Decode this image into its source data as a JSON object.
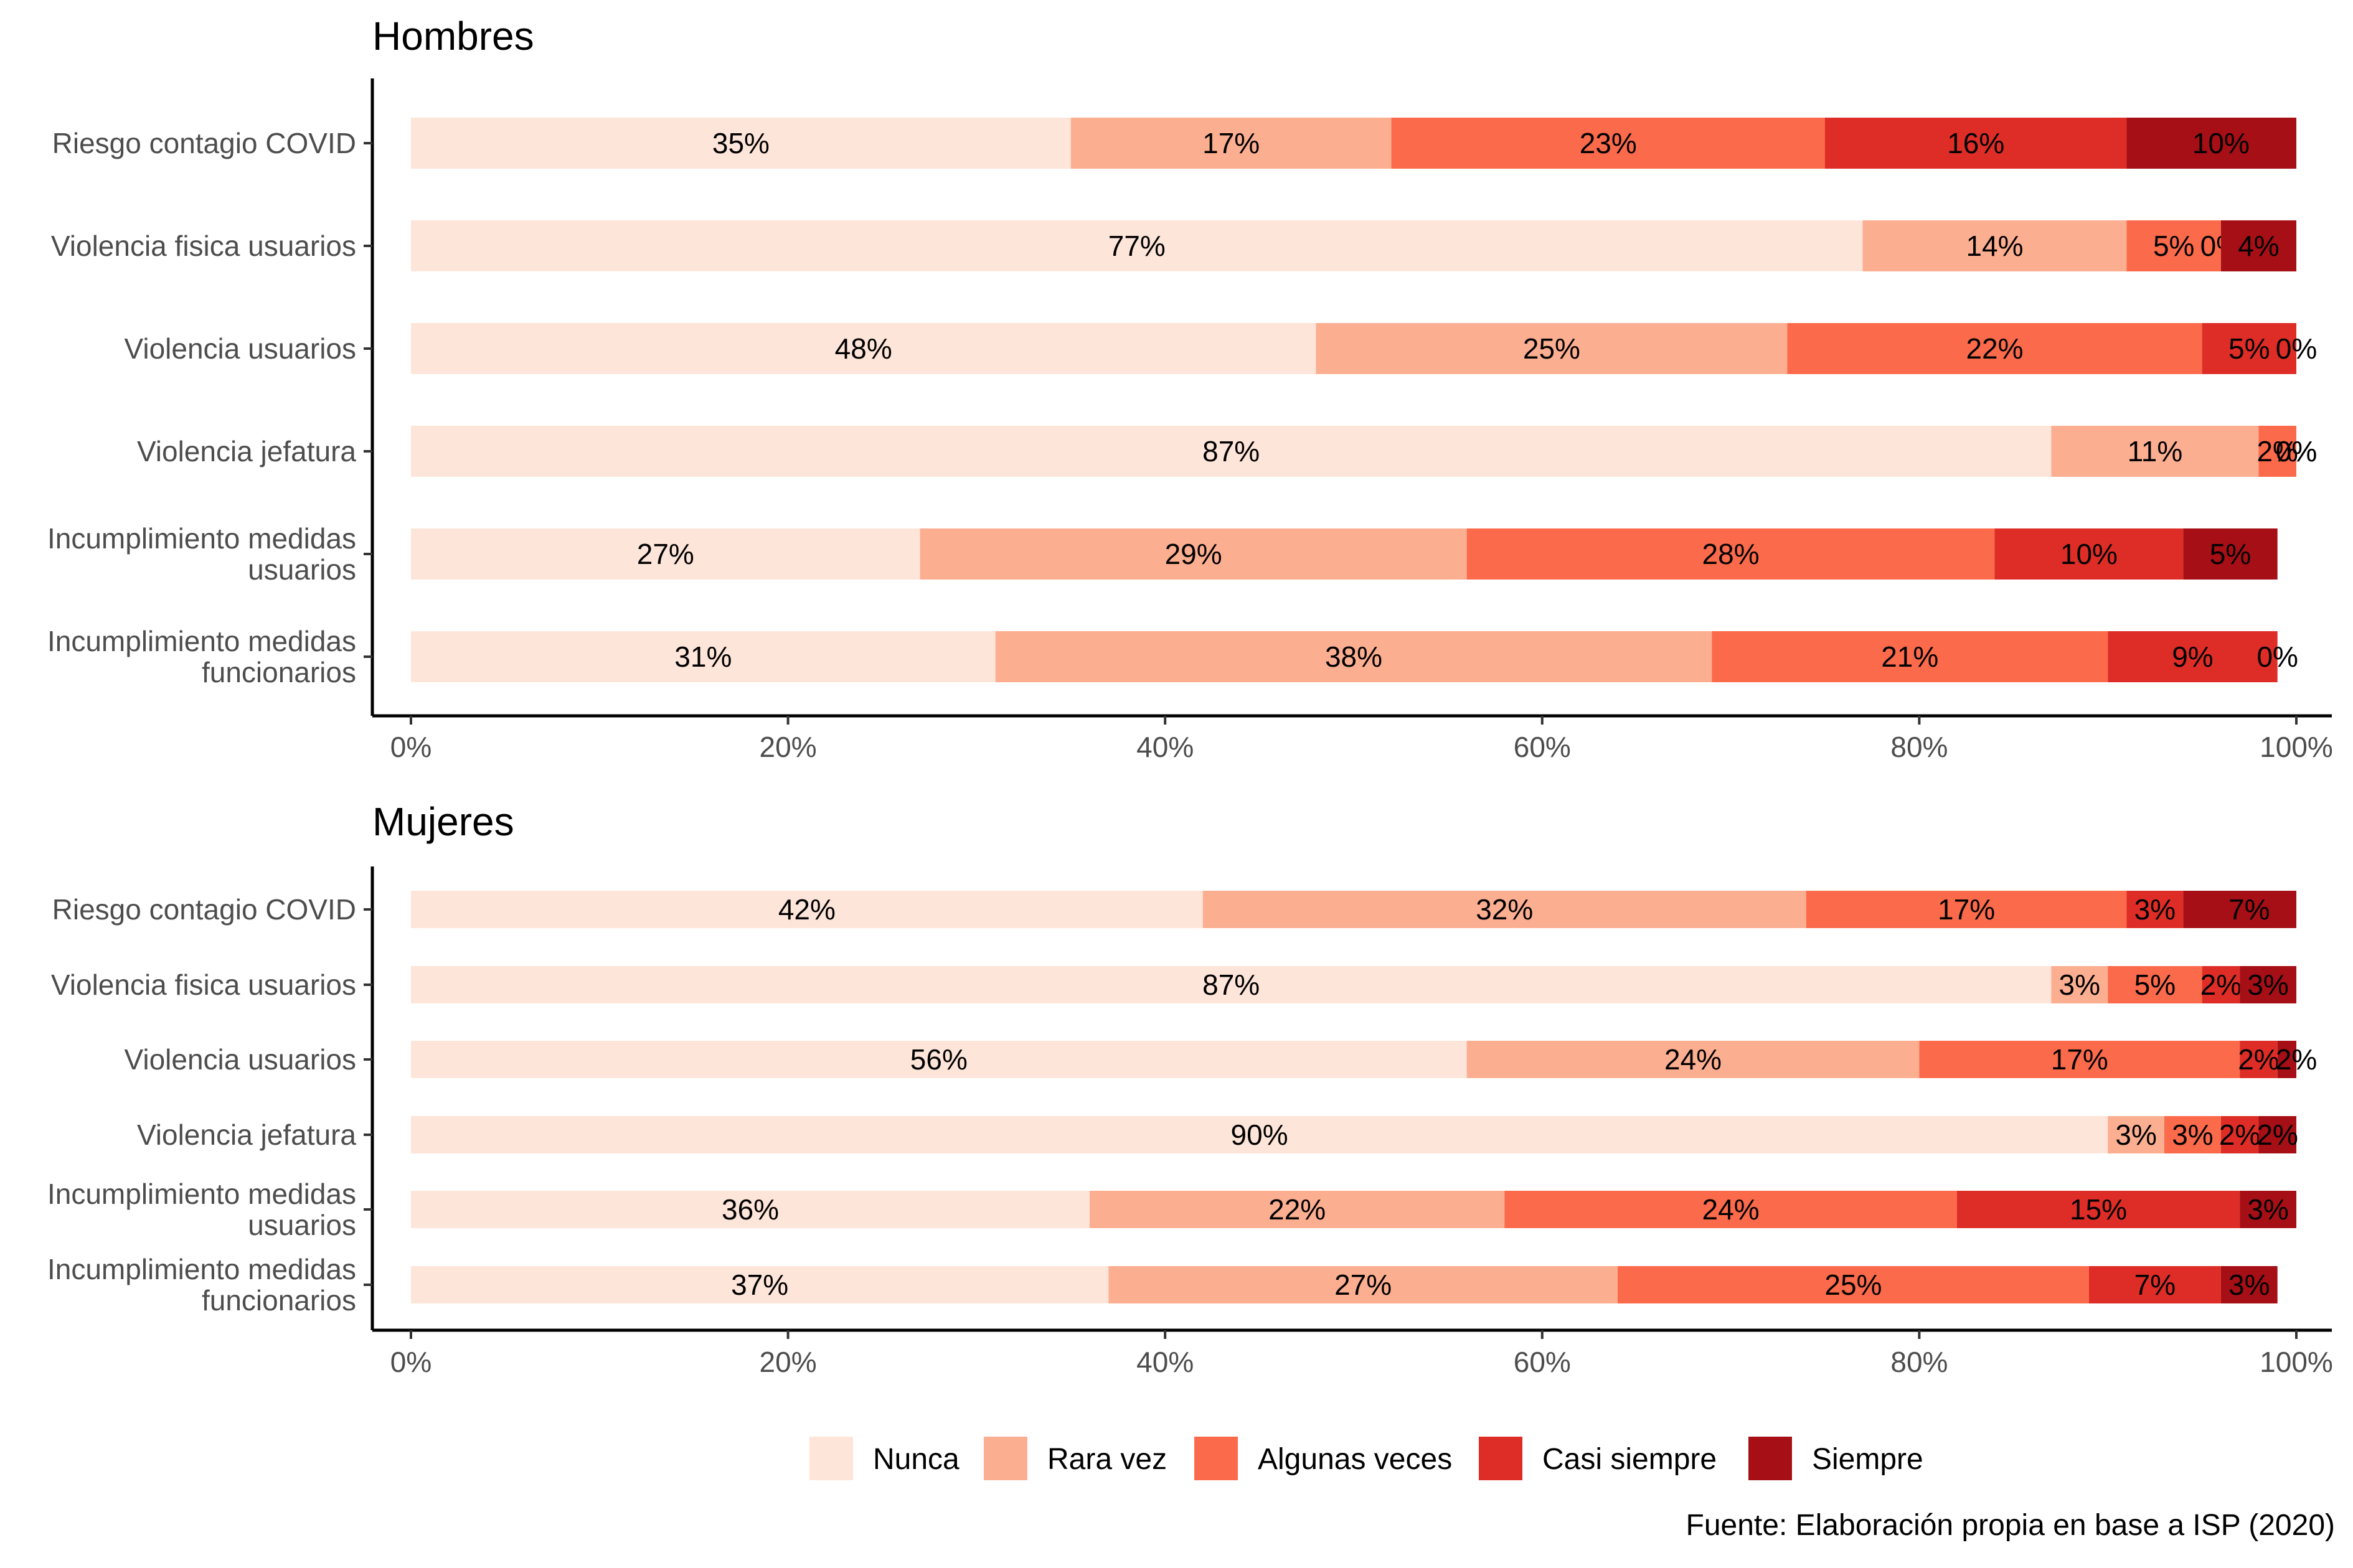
{
  "colors": {
    "Nunca": "#FEE5D9",
    "Rara vez": "#FCAE91",
    "Algunas veces": "#FB6A4A",
    "Casi siempre": "#DE2D26",
    "Siempre": "#A50F15"
  },
  "legend": [
    "Nunca",
    "Rara vez",
    "Algunas veces",
    "Casi siempre",
    "Siempre"
  ],
  "caption": "Fuente: Elaboración propia en base a ISP (2020)",
  "chart_data": [
    {
      "type": "bar",
      "orientation": "horizontal-stacked-100",
      "title": "Hombres",
      "categories": [
        "Riesgo contagio COVID",
        "Violencia fisica usuarios",
        "Violencia usuarios",
        "Violencia jefatura",
        "Incumplimiento medidas\nusuarios",
        "Incumplimiento medidas\nfuncionarios"
      ],
      "xlim": [
        0,
        100
      ],
      "xticks": [
        "0%",
        "20%",
        "40%",
        "60%",
        "80%",
        "100%"
      ],
      "series": [
        {
          "name": "Nunca",
          "values": [
            35,
            77,
            48,
            87,
            27,
            31
          ],
          "labels": [
            "35%",
            "77%",
            "48%",
            "87%",
            "27%",
            "31%"
          ]
        },
        {
          "name": "Rara vez",
          "values": [
            17,
            14,
            25,
            11,
            29,
            38
          ],
          "labels": [
            "17%",
            "14%",
            "25%",
            "11%",
            "29%",
            "38%"
          ]
        },
        {
          "name": "Algunas veces",
          "values": [
            23,
            5,
            22,
            2,
            28,
            21
          ],
          "labels": [
            "23%",
            "5%",
            "22%",
            "2%",
            "28%",
            "21%"
          ]
        },
        {
          "name": "Casi siempre",
          "values": [
            16,
            0,
            5,
            0,
            10,
            9
          ],
          "labels": [
            "16%",
            "0%",
            "5%",
            "0%",
            "10%",
            "9%"
          ]
        },
        {
          "name": "Siempre",
          "values": [
            10,
            4,
            0,
            0,
            5,
            0
          ],
          "labels": [
            "10%",
            "4%",
            "0%",
            "0%",
            "5%",
            "0%"
          ]
        }
      ]
    },
    {
      "type": "bar",
      "orientation": "horizontal-stacked-100",
      "title": "Mujeres",
      "categories": [
        "Riesgo contagio COVID",
        "Violencia fisica usuarios",
        "Violencia usuarios",
        "Violencia jefatura",
        "Incumplimiento medidas\nusuarios",
        "Incumplimiento medidas\nfuncionarios"
      ],
      "xlim": [
        0,
        100
      ],
      "xticks": [
        "0%",
        "20%",
        "40%",
        "60%",
        "80%",
        "100%"
      ],
      "series": [
        {
          "name": "Nunca",
          "values": [
            42,
            87,
            56,
            90,
            36,
            37
          ],
          "labels": [
            "42%",
            "87%",
            "56%",
            "90%",
            "36%",
            "37%"
          ]
        },
        {
          "name": "Rara vez",
          "values": [
            32,
            3,
            24,
            3,
            22,
            27
          ],
          "labels": [
            "32%",
            "3%",
            "24%",
            "3%",
            "22%",
            "27%"
          ]
        },
        {
          "name": "Algunas veces",
          "values": [
            17,
            5,
            17,
            3,
            24,
            25
          ],
          "labels": [
            "17%",
            "5%",
            "17%",
            "3%",
            "24%",
            "25%"
          ]
        },
        {
          "name": "Casi siempre",
          "values": [
            3,
            2,
            2,
            2,
            15,
            7
          ],
          "labels": [
            "3%",
            "2%",
            "2%",
            "2%",
            "15%",
            "7%"
          ]
        },
        {
          "name": "Siempre",
          "values": [
            7,
            3,
            2,
            2,
            3,
            3
          ],
          "labels": [
            "7%",
            "3%",
            "2%",
            "2%",
            "3%",
            "3%"
          ]
        }
      ]
    }
  ]
}
